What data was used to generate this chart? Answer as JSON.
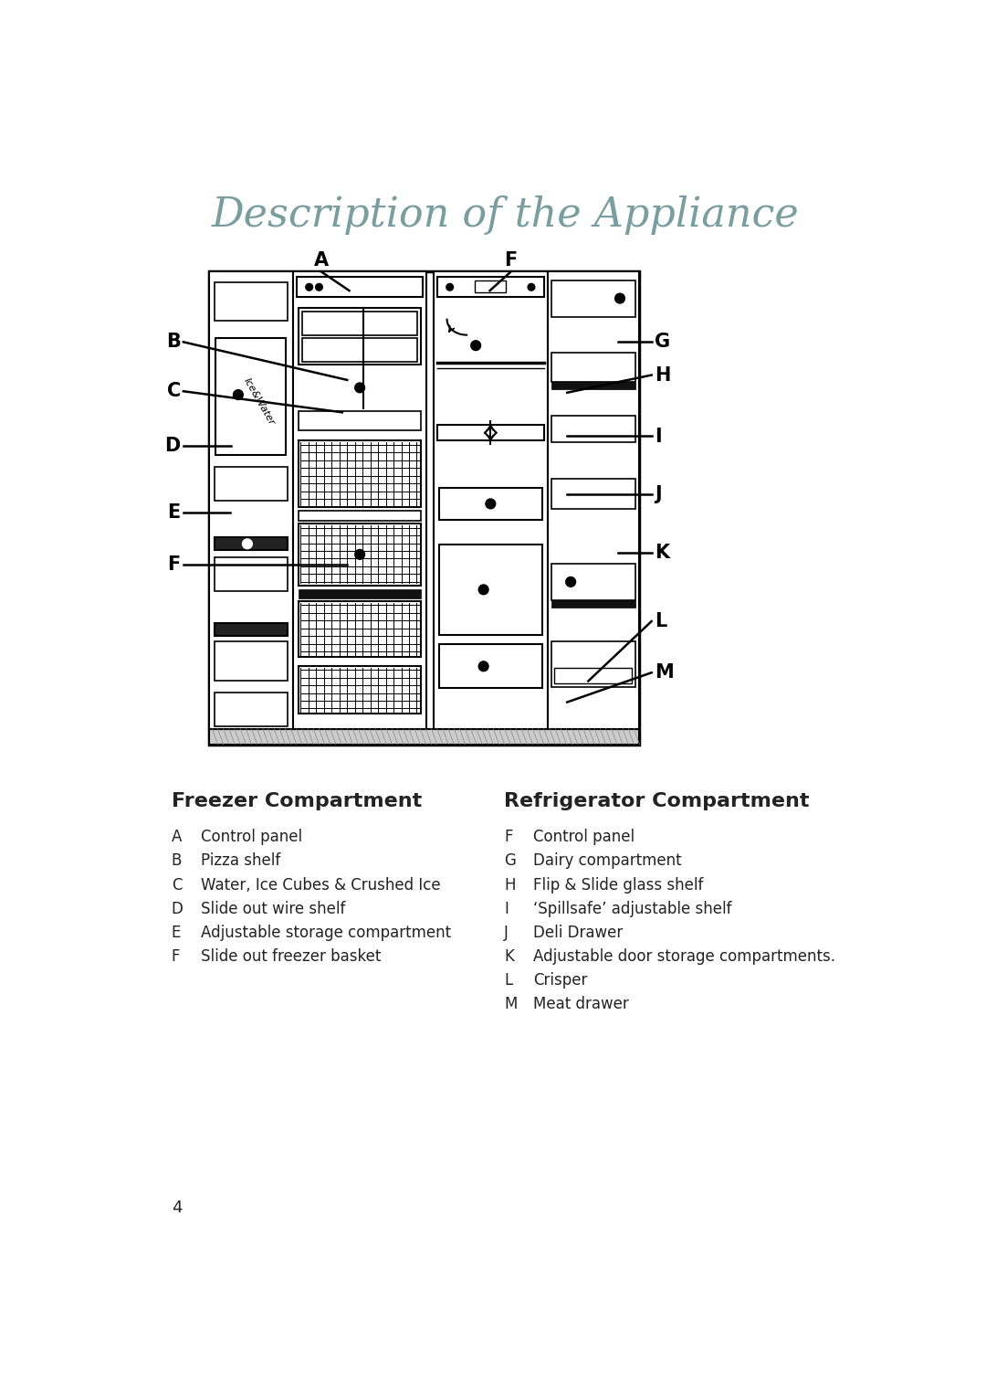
{
  "title": "Description of the Appliance",
  "title_color": "#7a9e9f",
  "title_fontsize": 32,
  "page_number": "4",
  "freezer_heading": "Freezer Compartment",
  "refrigerator_heading": "Refrigerator Compartment",
  "freezer_items": [
    [
      "A",
      "Control panel"
    ],
    [
      "B",
      "Pizza shelf"
    ],
    [
      "C",
      "Water, Ice Cubes & Crushed Ice"
    ],
    [
      "D",
      "Slide out wire shelf"
    ],
    [
      "E",
      "Adjustable storage compartment"
    ],
    [
      "F",
      "Slide out freezer basket"
    ]
  ],
  "refrigerator_items": [
    [
      "F",
      "Control panel"
    ],
    [
      "G",
      "Dairy compartment"
    ],
    [
      "H",
      "Flip & Slide glass shelf"
    ],
    [
      "I",
      "‘Spillsafe’ adjustable shelf"
    ],
    [
      "J",
      "Deli Drawer"
    ],
    [
      "K",
      "Adjustable door storage compartments."
    ],
    [
      "L",
      "Crisper"
    ],
    [
      "M",
      "Meat drawer"
    ]
  ],
  "bg_color": "#ffffff"
}
